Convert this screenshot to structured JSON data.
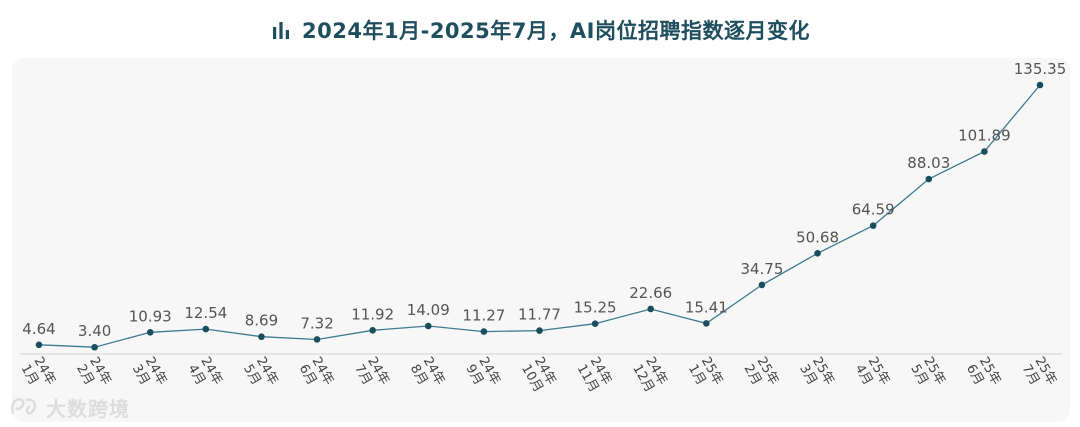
{
  "title": "2024年1月-2025年7月，AI岗位招聘指数逐月变化",
  "watermark": "大数跨境",
  "colors": {
    "line": "#3d7a90",
    "point": "#1a4d5e",
    "title": "#1f4e5f",
    "axis": "#d0d0d0"
  },
  "chart_data": {
    "type": "line",
    "title": "2024年1月-2025年7月，AI岗位招聘指数逐月变化",
    "xlabel": "",
    "ylabel": "",
    "ylim": [
      0,
      135.35
    ],
    "categories": [
      [
        "24年",
        "1月"
      ],
      [
        "24年",
        "2月"
      ],
      [
        "24年",
        "3月"
      ],
      [
        "24年",
        "4月"
      ],
      [
        "24年",
        "5月"
      ],
      [
        "24年",
        "6月"
      ],
      [
        "24年",
        "7月"
      ],
      [
        "24年",
        "8月"
      ],
      [
        "24年",
        "9月"
      ],
      [
        "24年",
        "10月"
      ],
      [
        "24年",
        "11月"
      ],
      [
        "24年",
        "12月"
      ],
      [
        "25年",
        "1月"
      ],
      [
        "25年",
        "2月"
      ],
      [
        "25年",
        "3月"
      ],
      [
        "25年",
        "4月"
      ],
      [
        "25年",
        "5月"
      ],
      [
        "25年",
        "6月"
      ],
      [
        "25年",
        "7月"
      ]
    ],
    "values": [
      4.64,
      3.4,
      10.93,
      12.54,
      8.69,
      7.32,
      11.92,
      14.09,
      11.27,
      11.77,
      15.25,
      22.66,
      15.41,
      34.75,
      50.68,
      64.59,
      88.03,
      101.89,
      135.35
    ],
    "labels": [
      "4.64",
      "3.40",
      "10.93",
      "12.54",
      "8.69",
      "7.32",
      "11.92",
      "14.09",
      "11.27",
      "11.77",
      "15.25",
      "22.66",
      "15.41",
      "34.75",
      "50.68",
      "64.59",
      "88.03",
      "101.89",
      "135.35"
    ]
  }
}
